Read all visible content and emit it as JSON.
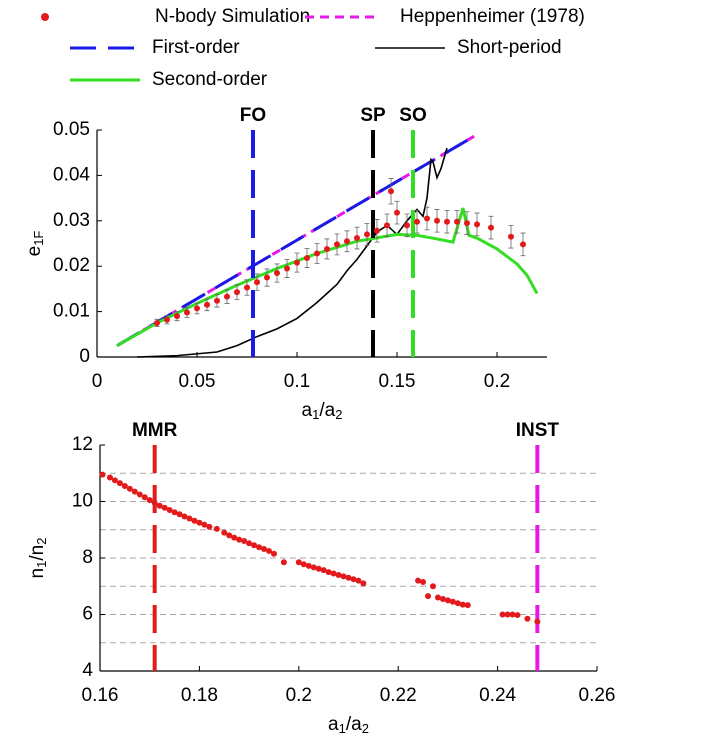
{
  "chart_data": [
    {
      "type": "line",
      "legend": "top",
      "xlim": [
        0,
        0.225
      ],
      "ylim": [
        0,
        0.05
      ],
      "xticks": [
        0,
        0.05,
        0.1,
        0.15,
        0.2
      ],
      "yticks": [
        0,
        0.01,
        0.02,
        0.03,
        0.04,
        0.05
      ],
      "xlabel": [
        "a",
        "1",
        "/a",
        "2"
      ],
      "ylabel": [
        "e",
        "1F"
      ],
      "markers": [
        {
          "x": 0.078,
          "label": "FO",
          "color": "#1a1ae6"
        },
        {
          "x": 0.138,
          "label": "SP",
          "color": "#000000"
        },
        {
          "x": 0.158,
          "label": "SO",
          "color": "#33dd22"
        }
      ],
      "series": [
        {
          "name": "N-body Simulation",
          "color": "#e31a1c",
          "style": "dots",
          "x": [
            0.03,
            0.035,
            0.04,
            0.045,
            0.05,
            0.055,
            0.06,
            0.065,
            0.07,
            0.075,
            0.08,
            0.085,
            0.09,
            0.095,
            0.1,
            0.105,
            0.11,
            0.115,
            0.12,
            0.125,
            0.13,
            0.135,
            0.14,
            0.145,
            0.147,
            0.15,
            0.155,
            0.16,
            0.165,
            0.17,
            0.175,
            0.18,
            0.185,
            0.19,
            0.197,
            0.207,
            0.213
          ],
          "values": [
            0.0075,
            0.0082,
            0.009,
            0.0098,
            0.0107,
            0.0115,
            0.0124,
            0.0133,
            0.0143,
            0.0153,
            0.0165,
            0.0175,
            0.0185,
            0.0195,
            0.0208,
            0.0218,
            0.0228,
            0.0238,
            0.0248,
            0.0255,
            0.0262,
            0.027,
            0.0278,
            0.029,
            0.0365,
            0.0318,
            0.029,
            0.0298,
            0.0305,
            0.03,
            0.0298,
            0.0298,
            0.0295,
            0.0292,
            0.0285,
            0.0265,
            0.0248
          ],
          "errors": [
            0.0008,
            0.0009,
            0.001,
            0.0011,
            0.0012,
            0.0013,
            0.0014,
            0.0015,
            0.0016,
            0.0017,
            0.0018,
            0.0019,
            0.002,
            0.002,
            0.0021,
            0.0021,
            0.0022,
            0.0022,
            0.0023,
            0.0023,
            0.0024,
            0.0024,
            0.0025,
            0.0025,
            0.0028,
            0.0025,
            0.0025,
            0.0025,
            0.0025,
            0.0025,
            0.0025,
            0.0025,
            0.0025,
            0.0025,
            0.0025,
            0.0025,
            0.0025
          ]
        },
        {
          "name": "Heppenheimer (1978)",
          "color": "#e619e6",
          "style": "dashed",
          "x": [
            0.01,
            0.19
          ],
          "values": [
            0.0025,
            0.049
          ]
        },
        {
          "name": "First-order",
          "color": "#1a1ae6",
          "style": "longdash",
          "x": [
            0.01,
            0.19
          ],
          "values": [
            0.0025,
            0.049
          ]
        },
        {
          "name": "Short-period",
          "color": "#000000",
          "style": "solid",
          "x": [
            0.02,
            0.04,
            0.06,
            0.07,
            0.08,
            0.09,
            0.1,
            0.11,
            0.12,
            0.125,
            0.13,
            0.135,
            0.14,
            0.145,
            0.15,
            0.155,
            0.16,
            0.163,
            0.165,
            0.167,
            0.168,
            0.17,
            0.172,
            0.175
          ],
          "values": [
            0,
            0.0003,
            0.0011,
            0.0025,
            0.0045,
            0.0062,
            0.0085,
            0.012,
            0.016,
            0.019,
            0.0215,
            0.0245,
            0.0275,
            0.029,
            0.027,
            0.03,
            0.0325,
            0.031,
            0.035,
            0.0435,
            0.043,
            0.0395,
            0.0415,
            0.046
          ]
        },
        {
          "name": "Second-order",
          "color": "#33dd22",
          "style": "solid",
          "x": [
            0.01,
            0.03,
            0.05,
            0.07,
            0.09,
            0.11,
            0.13,
            0.15,
            0.16,
            0.17,
            0.178,
            0.183,
            0.186,
            0.19,
            0.2,
            0.21,
            0.215,
            0.22
          ],
          "values": [
            0.0025,
            0.0075,
            0.0118,
            0.0158,
            0.0195,
            0.0228,
            0.0255,
            0.027,
            0.0268,
            0.026,
            0.0253,
            0.0328,
            0.0268,
            0.0262,
            0.0238,
            0.0205,
            0.018,
            0.014
          ]
        }
      ]
    },
    {
      "type": "scatter",
      "xlim": [
        0.16,
        0.26
      ],
      "ylim": [
        4,
        12
      ],
      "xticks": [
        0.16,
        0.18,
        0.2,
        0.22,
        0.24,
        0.26
      ],
      "yticks": [
        4,
        6,
        8,
        10,
        12
      ],
      "ygrid": [
        5,
        6,
        7,
        8,
        9,
        10,
        11
      ],
      "xlabel": [
        "a",
        "1",
        "/a",
        "2"
      ],
      "ylabel": [
        "n",
        "1",
        "/n",
        "2"
      ],
      "markers": [
        {
          "x": 0.171,
          "label": "MMR",
          "color": "#e31a1c"
        },
        {
          "x": 0.248,
          "label": "INST",
          "color": "#e619e6"
        }
      ],
      "series": [
        {
          "color": "#e31a1c",
          "style": "dots",
          "x": [
            0.1605,
            0.162,
            0.163,
            0.164,
            0.165,
            0.166,
            0.167,
            0.168,
            0.169,
            0.17,
            0.171,
            0.172,
            0.173,
            0.174,
            0.175,
            0.176,
            0.177,
            0.178,
            0.179,
            0.18,
            0.181,
            0.182,
            0.1835,
            0.185,
            0.186,
            0.187,
            0.188,
            0.189,
            0.19,
            0.191,
            0.192,
            0.193,
            0.194,
            0.195,
            0.197,
            0.2,
            0.201,
            0.202,
            0.203,
            0.204,
            0.205,
            0.206,
            0.207,
            0.208,
            0.209,
            0.21,
            0.211,
            0.212,
            0.213,
            0.224,
            0.225,
            0.226,
            0.227,
            0.228,
            0.229,
            0.23,
            0.231,
            0.232,
            0.233,
            0.234,
            0.241,
            0.242,
            0.243,
            0.244,
            0.246,
            0.248
          ],
          "values": [
            10.95,
            10.85,
            10.75,
            10.65,
            10.55,
            10.45,
            10.35,
            10.25,
            10.15,
            10.05,
            9.95,
            9.85,
            9.78,
            9.7,
            9.62,
            9.55,
            9.47,
            9.4,
            9.32,
            9.25,
            9.18,
            9.1,
            9.03,
            8.9,
            8.8,
            8.72,
            8.65,
            8.6,
            8.52,
            8.45,
            8.38,
            8.32,
            8.25,
            8.15,
            7.85,
            7.85,
            7.78,
            7.72,
            7.67,
            7.62,
            7.57,
            7.5,
            7.45,
            7.4,
            7.35,
            7.3,
            7.25,
            7.2,
            7.1,
            7.2,
            7.15,
            6.65,
            7.0,
            6.6,
            6.55,
            6.5,
            6.45,
            6.4,
            6.35,
            6.33,
            6.0,
            6.0,
            6.0,
            5.98,
            5.85,
            5.75
          ]
        }
      ]
    }
  ]
}
